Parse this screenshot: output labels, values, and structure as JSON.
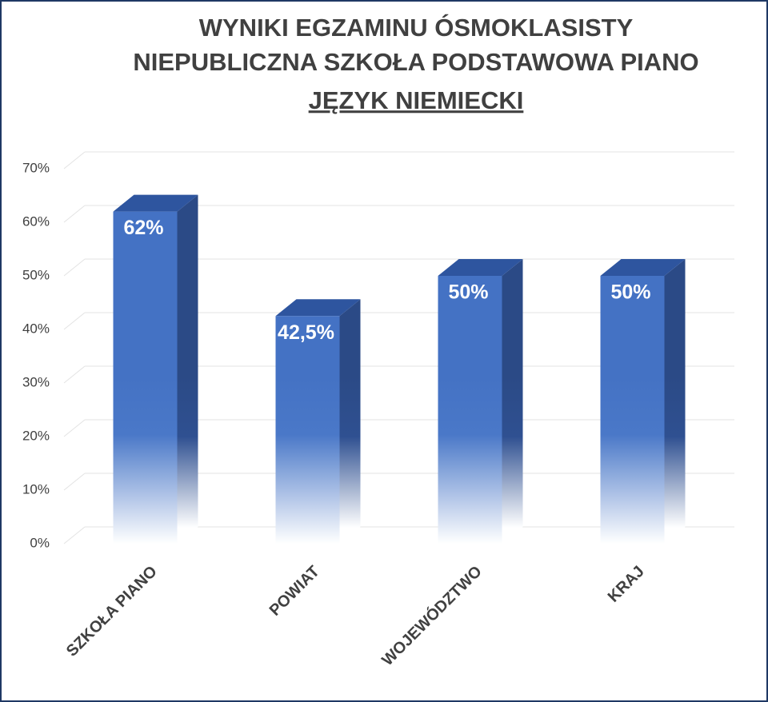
{
  "chart_data": {
    "type": "bar3d",
    "title": [
      "WYNIKI EGZAMINU ÓSMOKLASISTY",
      "NIEPUBLICZNA SZKOŁA PODSTAWOWA PIANO"
    ],
    "subtitle": "JĘZYK NIEMIECKI",
    "categories": [
      "SZKOŁA PIANO",
      "POWIAT",
      "WOJEWÓDZTWO",
      "KRAJ"
    ],
    "values": [
      62,
      42.5,
      50,
      50
    ],
    "value_labels": [
      "62%",
      "42,5%",
      "50%",
      "50%"
    ],
    "color": "#4472c4",
    "ylim": [
      0,
      70
    ],
    "yticks": [
      {
        "value": 0,
        "label": "0%"
      },
      {
        "value": 10,
        "label": "10%"
      },
      {
        "value": 20,
        "label": "20%"
      },
      {
        "value": 30,
        "label": "30%"
      },
      {
        "value": 40,
        "label": "40%"
      },
      {
        "value": 50,
        "label": "50%"
      },
      {
        "value": 60,
        "label": "60%"
      },
      {
        "value": 70,
        "label": "70%"
      }
    ],
    "grid": true
  }
}
